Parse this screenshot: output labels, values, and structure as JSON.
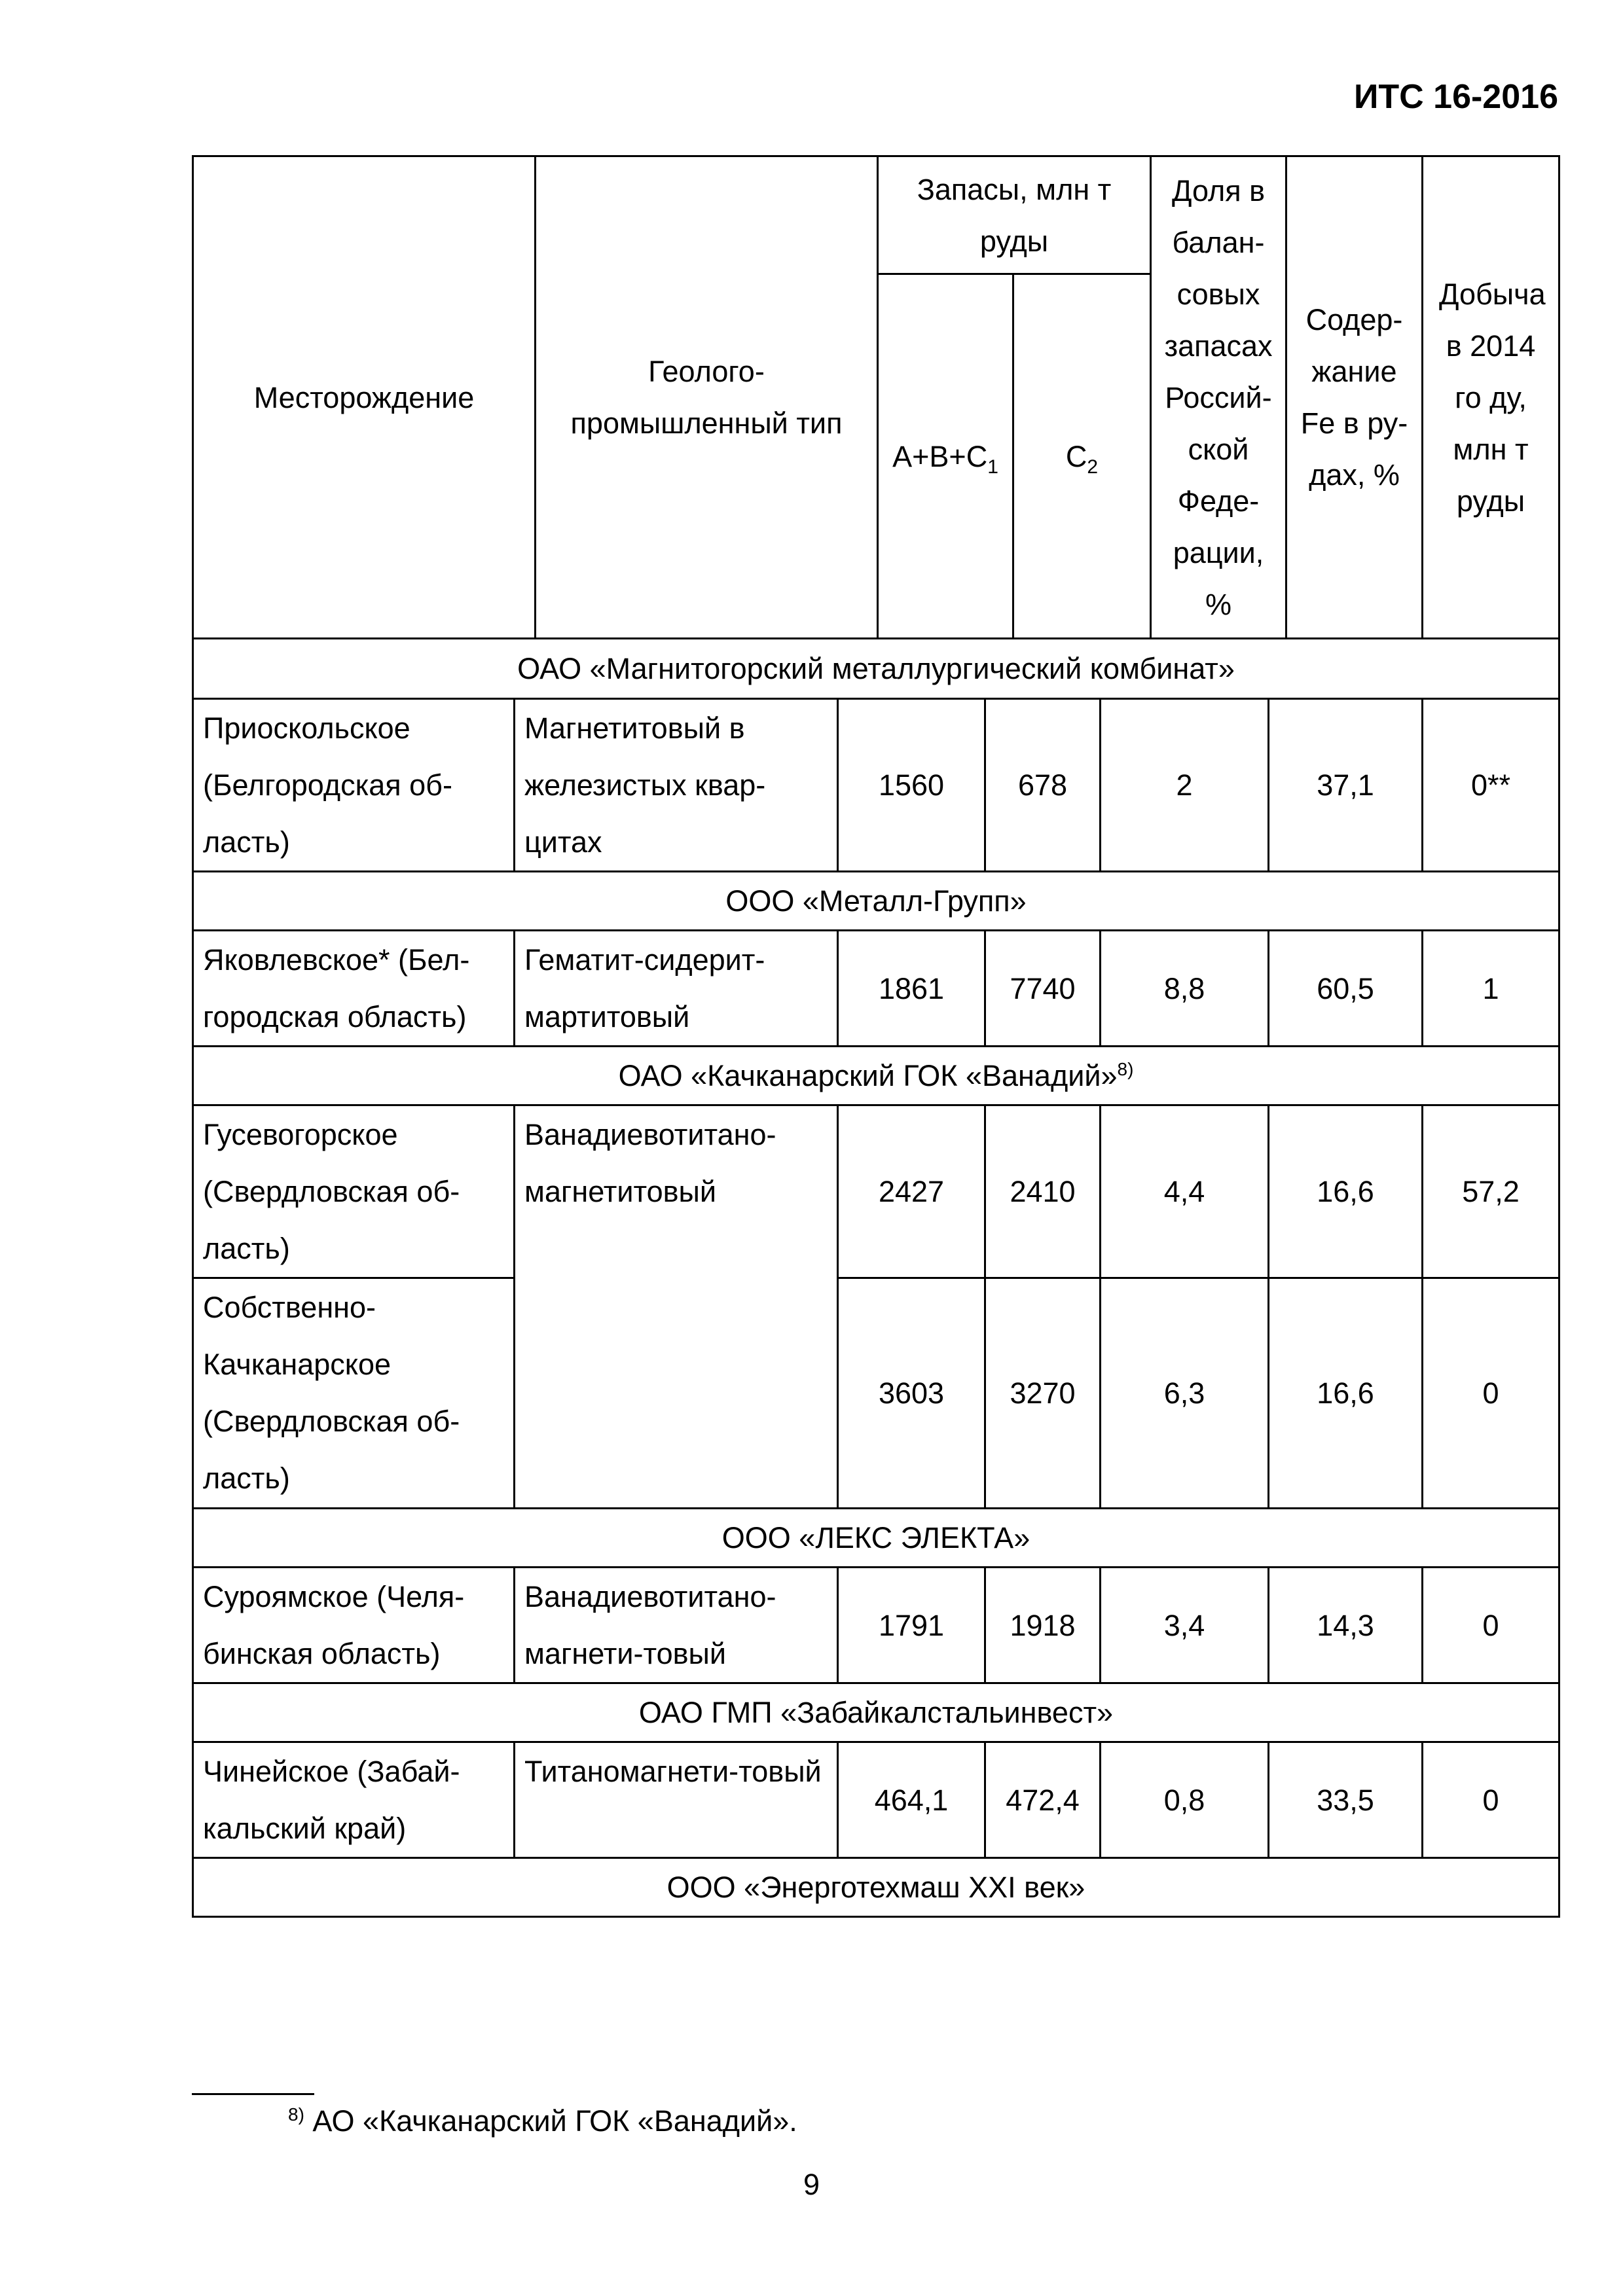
{
  "doc_id": "ИТС 16-2016",
  "header": {
    "deposit": "Месторождение",
    "type": "Геолого-промышленный тип",
    "reserves": "Запасы, млн т руды",
    "abc": "A+B+C",
    "abc_sub": "1",
    "c2": "C",
    "c2_sub": "2",
    "share": "Доля в балан-совых запасах Россий-ской Феде-рации, %",
    "fe": "Содер-жание Fe в ру-дах, %",
    "production": "Добыча в 2014 го ду, млн т руды"
  },
  "groups": [
    {
      "name": "ОАО «Магнитогорский металлургический комбинат»"
    },
    {
      "name": "ООО «Металл-Групп»"
    },
    {
      "name": "ОАО «Качканарский ГОК «Ванадий»",
      "footnote_ref": "8)"
    },
    {
      "name": "ООО «ЛЕКС ЭЛЕКТА»"
    },
    {
      "name": "ОАО ГМП «Забайкалстальинвест»"
    },
    {
      "name": "ООО «Энерготехмаш XXI век»"
    }
  ],
  "rows": [
    {
      "deposit": "Приоскольское (Белгородская об-ласть)",
      "type": "Магнетитовый в железистых квар-цитах",
      "abc": "1560",
      "c2": "678",
      "share": "2",
      "fe": "37,1",
      "production": "0**"
    },
    {
      "deposit": "Яковлевское* (Бел-городская область)",
      "type": "Гематит-сидерит-мартитовый",
      "abc": "1861",
      "c2": "7740",
      "share": "8,8",
      "fe": "60,5",
      "production": "1"
    },
    {
      "deposit": "Гусевогорское (Свердловская об-ласть)",
      "type": "Ванадиевотитано-магнетитовый",
      "abc": "2427",
      "c2": "2410",
      "share": "4,4",
      "fe": "16,6",
      "production": "57,2"
    },
    {
      "deposit": "Собственно-Качканарское (Свердловская об-ласть)",
      "abc": "3603",
      "c2": "3270",
      "share": "6,3",
      "fe": "16,6",
      "production": "0"
    },
    {
      "deposit": "Суроямское (Челя-бинская область)",
      "type": "Ванадиевотитано-магнети-товый",
      "abc": "1791",
      "c2": "1918",
      "share": "3,4",
      "fe": "14,3",
      "production": "0"
    },
    {
      "deposit": "Чинейское (Забай-кальский край)",
      "type": "Титаномагнети-товый",
      "abc": "464,1",
      "c2": "472,4",
      "share": "0,8",
      "fe": "33,5",
      "production": "0"
    }
  ],
  "footnote": {
    "ref": "8)",
    "text": "АО «Качканарский ГОК «Ванадий»."
  },
  "page_number": "9"
}
